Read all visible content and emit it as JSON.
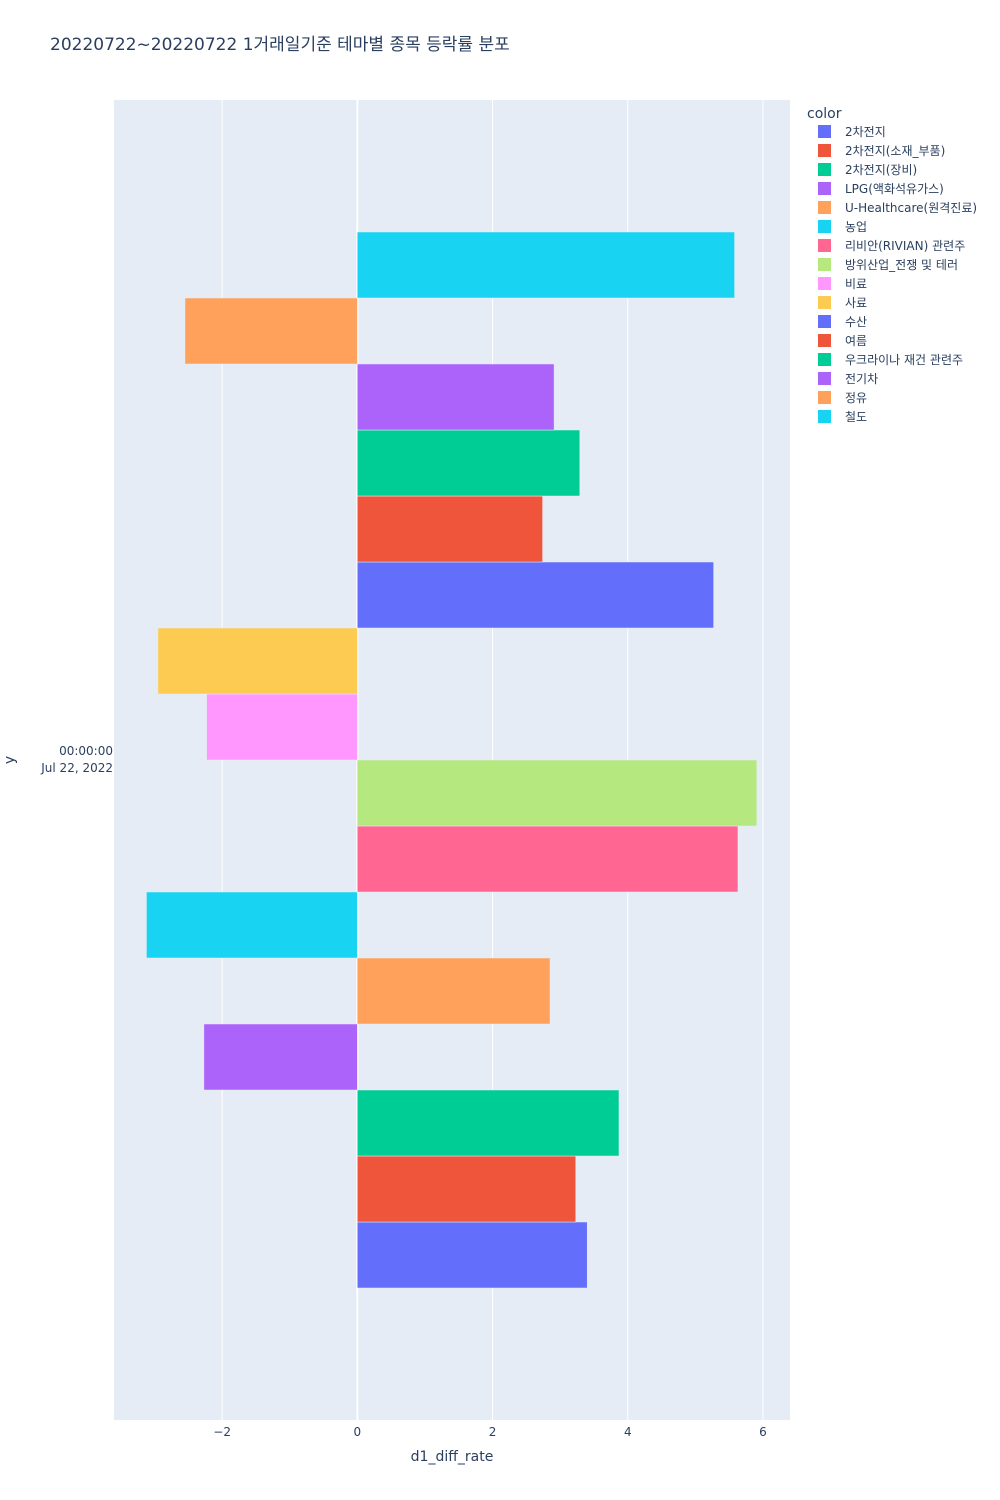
{
  "chart_data": {
    "type": "bar",
    "orientation": "horizontal",
    "barmode": "group",
    "title": "20220722~20220722 1거래일기준 테마별 종목 등락률 분포",
    "xlabel": "d1_diff_rate",
    "ylabel": "y",
    "y_category": [
      "00:00:00",
      "Jul 22, 2022"
    ],
    "xlim": [
      -3.6,
      6.4
    ],
    "x_ticks": [
      -2,
      0,
      2,
      4,
      6
    ],
    "x_tick_labels": [
      "−2",
      "0",
      "2",
      "4",
      "6"
    ],
    "grid": true,
    "legend_title": "color",
    "legend_position": "top-right",
    "series": [
      {
        "name": "2차전지",
        "color": "#636efa",
        "value": 3.4
      },
      {
        "name": "2차전지(소재_부품)",
        "color": "#EF553B",
        "value": 3.23
      },
      {
        "name": "2차전지(장비)",
        "color": "#00cc96",
        "value": 3.87
      },
      {
        "name": "LPG(액화석유가스)",
        "color": "#ab63fa",
        "value": -2.27
      },
      {
        "name": "U-Healthcare(원격진료)",
        "color": "#FFA15A",
        "value": 2.85
      },
      {
        "name": "농업",
        "color": "#19d3f3",
        "value": -3.12
      },
      {
        "name": "리비안(RIVIAN) 관련주",
        "color": "#FF6692",
        "value": 5.63
      },
      {
        "name": "방위산업_전쟁 및 테러",
        "color": "#B6E880",
        "value": 5.91
      },
      {
        "name": "비료",
        "color": "#FF97FF",
        "value": -2.23
      },
      {
        "name": "사료",
        "color": "#FECB52",
        "value": -2.95
      },
      {
        "name": "수산",
        "color": "#636efa",
        "value": 5.27
      },
      {
        "name": "여름",
        "color": "#EF553B",
        "value": 2.74
      },
      {
        "name": "우크라이나 재건 관련주",
        "color": "#00cc96",
        "value": 3.29
      },
      {
        "name": "전기차",
        "color": "#ab63fa",
        "value": 2.91
      },
      {
        "name": "정유",
        "color": "#FFA15A",
        "value": -2.55
      },
      {
        "name": "철도",
        "color": "#19d3f3",
        "value": 5.58
      }
    ]
  }
}
